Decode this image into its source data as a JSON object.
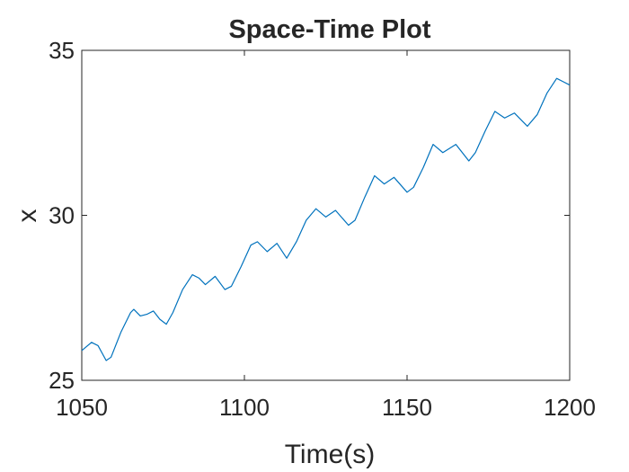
{
  "chart_data": {
    "type": "line",
    "title": "Space-Time Plot",
    "xlabel": "Time(s)",
    "ylabel": "x",
    "x": [
      1050,
      1053,
      1055,
      1057.5,
      1059,
      1062,
      1065,
      1066,
      1068,
      1070,
      1072,
      1074,
      1076,
      1078,
      1081,
      1084,
      1086,
      1088,
      1091,
      1094,
      1096,
      1099,
      1102,
      1104,
      1107,
      1110,
      1113,
      1116,
      1119,
      1122,
      1125,
      1128,
      1132,
      1134,
      1137,
      1140,
      1143,
      1146,
      1150,
      1152,
      1155,
      1158,
      1161,
      1165,
      1169,
      1171,
      1174,
      1177,
      1180,
      1183,
      1187,
      1190,
      1193,
      1196,
      1198,
      1200
    ],
    "series": [
      {
        "name": "x",
        "color": "#0072BD",
        "values": [
          25.9,
          26.15,
          26.05,
          25.6,
          25.7,
          26.45,
          27.05,
          27.15,
          26.95,
          27.0,
          27.1,
          26.85,
          26.7,
          27.05,
          27.75,
          28.2,
          28.1,
          27.9,
          28.15,
          27.75,
          27.85,
          28.45,
          29.1,
          29.2,
          28.9,
          29.15,
          28.7,
          29.2,
          29.85,
          30.2,
          29.95,
          30.15,
          29.7,
          29.85,
          30.55,
          31.2,
          30.95,
          31.15,
          30.7,
          30.85,
          31.45,
          32.15,
          31.9,
          32.15,
          31.65,
          31.9,
          32.55,
          33.15,
          32.95,
          33.1,
          32.7,
          33.05,
          33.7,
          34.15,
          34.05,
          33.95
        ]
      }
    ],
    "xlim": [
      1050,
      1200
    ],
    "xticks": [
      1050,
      1100,
      1150,
      1200
    ],
    "ylim": [
      25,
      35
    ],
    "yticks": [
      25,
      30,
      35
    ],
    "grid": false
  }
}
